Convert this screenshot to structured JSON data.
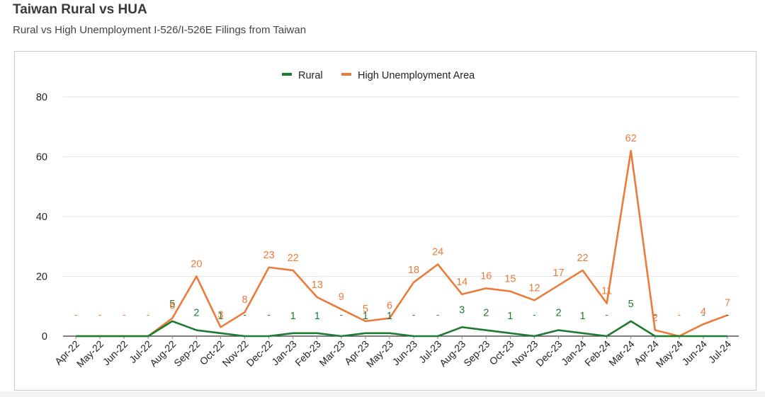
{
  "header": {
    "title": "Taiwan Rural vs HUA",
    "subtitle": "Rural vs High Unemployment I-526/I-526E Filings from Taiwan"
  },
  "colors": {
    "rural": "#1e7b2f",
    "hua": "#ec7a3a",
    "grid": "#e3e3e3",
    "axis": "#333333"
  },
  "chart_data": {
    "type": "line",
    "title": "",
    "xlabel": "",
    "ylabel": "",
    "ylim": [
      0,
      80
    ],
    "yticks": [
      0,
      20,
      40,
      60,
      80
    ],
    "grid": true,
    "legend_position": "top-center",
    "categories": [
      "Apr-22",
      "May-22",
      "Jun-22",
      "Jul-22",
      "Aug-22",
      "Sep-22",
      "Oct-22",
      "Nov-22",
      "Dec-22",
      "Jan-23",
      "Feb-23",
      "Mar-23",
      "Apr-23",
      "May-23",
      "Jun-23",
      "Jul-23",
      "Aug-23",
      "Sep-23",
      "Oct-23",
      "Nov-23",
      "Dec-23",
      "Jan-24",
      "Feb-24",
      "Mar-24",
      "Apr-24",
      "May-24",
      "Jun-24",
      "Jul-24"
    ],
    "series": [
      {
        "name": "Rural",
        "values": [
          0,
          0,
          0,
          0,
          5,
          2,
          1,
          0,
          0,
          1,
          1,
          0,
          1,
          1,
          0,
          0,
          3,
          2,
          1,
          0,
          2,
          1,
          0,
          5,
          0,
          0,
          0,
          0
        ],
        "data_labels": [
          "-",
          "-",
          "-",
          "-",
          "5",
          "2",
          "1",
          "-",
          "-",
          "1",
          "1",
          "-",
          "1",
          "1",
          "-",
          "-",
          "3",
          "2",
          "1",
          "-",
          "2",
          "1",
          "-",
          "5",
          "-",
          "-",
          "-",
          "-"
        ]
      },
      {
        "name": "High Unemployment Area",
        "values": [
          0,
          0,
          0,
          0,
          6,
          20,
          3,
          8,
          23,
          22,
          13,
          9,
          5,
          6,
          18,
          24,
          14,
          16,
          15,
          12,
          17,
          22,
          11,
          62,
          2,
          0,
          4,
          7
        ],
        "data_labels": [
          "-",
          "-",
          "-",
          "-",
          "6",
          "20",
          "3",
          "8",
          "23",
          "22",
          "13",
          "9",
          "5",
          "6",
          "18",
          "24",
          "14",
          "16",
          "15",
          "12",
          "17",
          "22",
          "11",
          "62",
          "2",
          "-",
          "4",
          "7"
        ]
      }
    ]
  }
}
